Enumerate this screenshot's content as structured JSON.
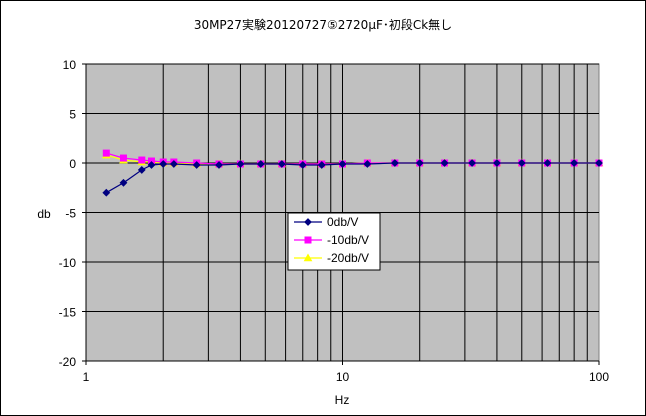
{
  "chart_data": {
    "type": "line",
    "title": "30MP27実験20120727⑤2720μF･初段Ck無し",
    "xlabel": "Hz",
    "ylabel": "db",
    "x_scale": "log",
    "xlim": [
      1,
      100
    ],
    "ylim": [
      -20,
      10
    ],
    "x_tick_labels": [
      "1",
      "10",
      "100"
    ],
    "y_tick_labels": [
      "10",
      "5",
      "0",
      "-5",
      "-10",
      "-15",
      "-20"
    ],
    "grid": true,
    "legend_position": "center-left",
    "colors": {
      "plot_background": "#c0c0c0",
      "grid": "#000000"
    },
    "series": [
      {
        "name": "0db/V",
        "color": "#000080",
        "marker": "diamond",
        "x": [
          1.2,
          1.4,
          1.65,
          1.8,
          2.0,
          2.2,
          2.7,
          3.3,
          4.0,
          4.8,
          5.8,
          7.0,
          8.3,
          10.0,
          12.5,
          16.0,
          20.0,
          25.0,
          32.0,
          40.0,
          50.0,
          63.0,
          80.0,
          100.0
        ],
        "y": [
          -3.0,
          -2.0,
          -0.7,
          -0.2,
          -0.1,
          -0.1,
          -0.2,
          -0.2,
          -0.1,
          -0.1,
          -0.1,
          -0.2,
          -0.2,
          -0.1,
          -0.1,
          0.0,
          0.0,
          0.0,
          0.0,
          0.0,
          0.0,
          0.0,
          0.0,
          0.0
        ]
      },
      {
        "name": "-10db/V",
        "color": "#ff00ff",
        "marker": "square",
        "x": [
          1.2,
          1.4,
          1.65,
          1.8,
          2.0,
          2.2,
          2.7,
          3.3,
          4.0,
          4.8,
          5.8,
          7.0,
          8.3,
          10.0,
          12.5,
          16.0,
          20.0,
          25.0,
          32.0,
          40.0,
          50.0,
          63.0,
          80.0,
          100.0
        ],
        "y": [
          1.0,
          0.5,
          0.3,
          0.2,
          0.1,
          0.1,
          0.0,
          -0.1,
          -0.1,
          -0.1,
          -0.1,
          -0.1,
          -0.1,
          -0.1,
          0.0,
          0.0,
          0.0,
          0.0,
          0.0,
          0.0,
          0.0,
          0.0,
          0.0,
          0.0
        ]
      },
      {
        "name": "-20db/V",
        "color": "#ffff00",
        "marker": "triangle",
        "x": [
          1.2,
          1.4,
          1.65,
          1.8,
          2.0,
          2.2,
          2.7,
          3.3,
          4.0,
          4.8,
          5.8,
          7.0,
          8.3,
          10.0,
          12.5,
          16.0,
          20.0,
          25.0,
          32.0,
          40.0,
          50.0,
          63.0,
          80.0,
          100.0
        ],
        "y": [
          0.8,
          0.3,
          0.1,
          0.1,
          0.0,
          0.0,
          -0.1,
          -0.1,
          -0.1,
          -0.1,
          -0.1,
          -0.1,
          -0.1,
          -0.1,
          0.0,
          0.0,
          0.0,
          0.0,
          0.0,
          0.0,
          0.0,
          0.0,
          0.0,
          0.0
        ]
      }
    ]
  }
}
